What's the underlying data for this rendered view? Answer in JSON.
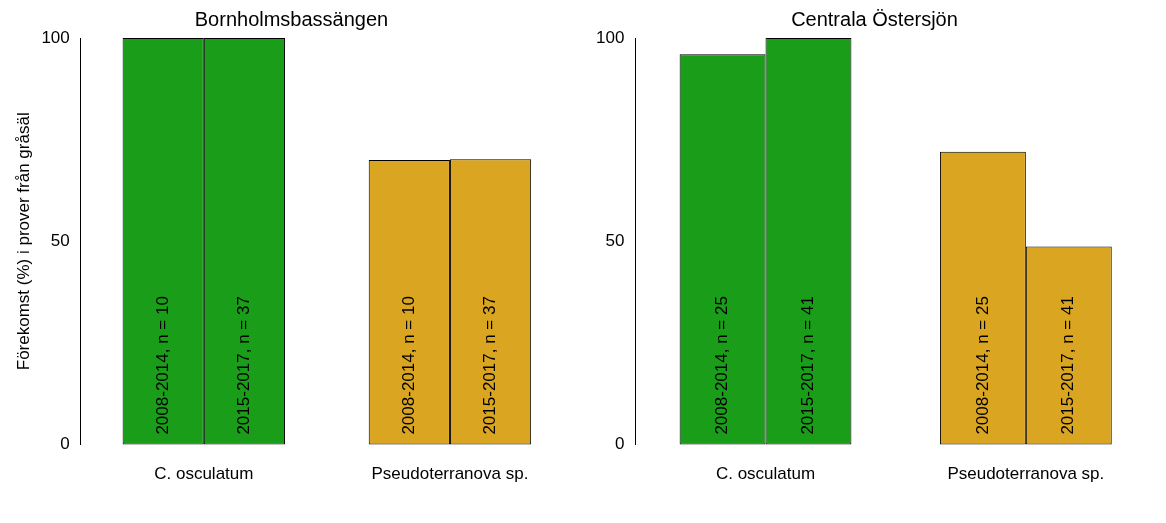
{
  "chart_data": [
    {
      "type": "bar",
      "title": "Bornholmsbassängen",
      "ylabel": "Förekomst (%) i prover från gråsäl",
      "categories": [
        "C. osculatum",
        "Pseudoterranova sp."
      ],
      "ylim": [
        0,
        100
      ],
      "yticks": [
        0,
        50,
        100
      ],
      "grid": false,
      "legend": false,
      "series": [
        {
          "name": "2008-2014, n = 10",
          "colors": [
            "#1a9e1a",
            "#daa520"
          ],
          "values": [
            100,
            70
          ]
        },
        {
          "name": "2015-2017, n = 37",
          "colors": [
            "#1a9e1a",
            "#daa520"
          ],
          "values": [
            100,
            70.2
          ]
        }
      ]
    },
    {
      "type": "bar",
      "title": "Centrala Östersjön",
      "categories": [
        "C. osculatum",
        "Pseudoterranova sp."
      ],
      "ylim": [
        0,
        100
      ],
      "yticks": [
        0,
        50,
        100
      ],
      "grid": false,
      "legend": false,
      "series": [
        {
          "name": "2008-2014, n = 25",
          "colors": [
            "#1a9e1a",
            "#daa520"
          ],
          "values": [
            96,
            72
          ]
        },
        {
          "name": "2015-2017, n = 41",
          "colors": [
            "#1a9e1a",
            "#daa520"
          ],
          "values": [
            100,
            48.7
          ]
        }
      ]
    }
  ]
}
